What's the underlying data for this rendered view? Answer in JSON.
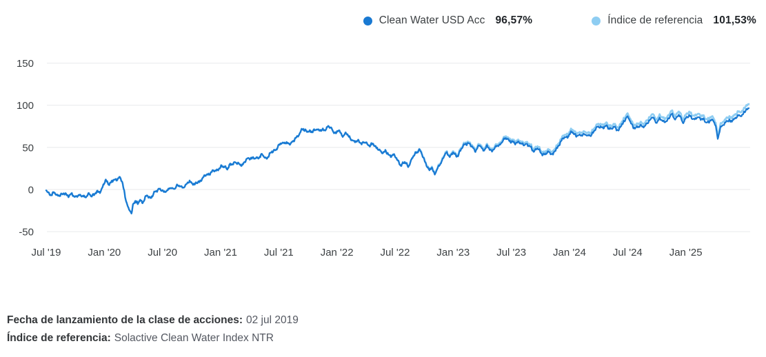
{
  "legend": {
    "series": [
      {
        "label": "Clean Water USD Acc",
        "value": "96,57%",
        "color": "#1979d2"
      },
      {
        "label": "Índice de referencia",
        "value": "101,53%",
        "color": "#8ecdf2"
      }
    ]
  },
  "footnotes": [
    {
      "label": "Fecha de lanzamiento de la clase de acciones:",
      "value": "02 jul 2019"
    },
    {
      "label": "Índice de referencia:",
      "value": "Solactive Clean Water Index NTR"
    }
  ],
  "chart_data": {
    "type": "line",
    "title": "",
    "xlabel": "",
    "ylabel": "",
    "x_unit": "months since Jul 2019",
    "x_range_months": [
      0,
      72.5
    ],
    "ylim": [
      -75,
      175
    ],
    "grid": "horizontal only",
    "legend_position": "top-right",
    "y_ticks": [
      150,
      100,
      50,
      0,
      -50
    ],
    "x_tick_months": [
      0,
      6,
      12,
      18,
      24,
      30,
      36,
      42,
      48,
      54,
      60,
      66
    ],
    "x_tick_labels": [
      "Jul '19",
      "Jan '20",
      "Jul '20",
      "Jan '21",
      "Jul '21",
      "Jan '22",
      "Jul '22",
      "Jan '23",
      "Jul '23",
      "Jan '24",
      "Jul '24",
      "Jan '25"
    ],
    "series": [
      {
        "name": "Clean Water USD Acc",
        "color": "#1979d2",
        "final_value_pct": 96.57,
        "keypoints": [
          [
            0,
            -1
          ],
          [
            0.2,
            -4
          ],
          [
            0.5,
            -5.5
          ],
          [
            0.8,
            -4.5
          ],
          [
            1.1,
            -7
          ],
          [
            1.4,
            -5.5
          ],
          [
            1.7,
            -6.5
          ],
          [
            2,
            -5
          ],
          [
            2.3,
            -7
          ],
          [
            2.6,
            -6
          ],
          [
            2.9,
            -8
          ],
          [
            3.2,
            -6.5
          ],
          [
            3.5,
            -8
          ],
          [
            3.8,
            -6.5
          ],
          [
            4.1,
            -8.5
          ],
          [
            4.4,
            -6
          ],
          [
            4.7,
            -7
          ],
          [
            5,
            -5
          ],
          [
            5.3,
            -3.5
          ],
          [
            5.6,
            -1.5
          ],
          [
            5.9,
            5
          ],
          [
            6.2,
            10.5
          ],
          [
            6.5,
            7
          ],
          [
            6.8,
            9.5
          ],
          [
            7.1,
            11
          ],
          [
            7.4,
            13.5
          ],
          [
            7.6,
            14.5
          ],
          [
            7.9,
            6
          ],
          [
            8.2,
            -10
          ],
          [
            8.5,
            -24
          ],
          [
            8.8,
            -28.5
          ],
          [
            9,
            -16
          ],
          [
            9.2,
            -13
          ],
          [
            9.45,
            -18
          ],
          [
            9.7,
            -12
          ],
          [
            9.95,
            -15
          ],
          [
            10.2,
            -10
          ],
          [
            10.5,
            -8
          ],
          [
            10.8,
            -9.5
          ],
          [
            11.1,
            -5
          ],
          [
            11.4,
            -2
          ],
          [
            11.65,
            2
          ],
          [
            11.9,
            -1
          ],
          [
            12.15,
            -4
          ],
          [
            12.5,
            0
          ],
          [
            12.8,
            1.5
          ],
          [
            13.1,
            0
          ],
          [
            13.5,
            5.5
          ],
          [
            13.9,
            2.5
          ],
          [
            14.3,
            4.5
          ],
          [
            14.7,
            8
          ],
          [
            15,
            9.5
          ],
          [
            15.3,
            5.5
          ],
          [
            15.7,
            8.5
          ],
          [
            16.1,
            13
          ],
          [
            16.6,
            17.5
          ],
          [
            17.1,
            20.5
          ],
          [
            17.6,
            23.5
          ],
          [
            18,
            26
          ],
          [
            18.4,
            28
          ],
          [
            18.7,
            24.5
          ],
          [
            19.1,
            30
          ],
          [
            19.5,
            33
          ],
          [
            19.9,
            29
          ],
          [
            20.3,
            30.5
          ],
          [
            20.7,
            35
          ],
          [
            21.1,
            38.5
          ],
          [
            21.5,
            36
          ],
          [
            21.9,
            38.5
          ],
          [
            22.3,
            41
          ],
          [
            22.6,
            36.5
          ],
          [
            23,
            41
          ],
          [
            23.4,
            45
          ],
          [
            23.8,
            49
          ],
          [
            24.2,
            54
          ],
          [
            24.6,
            56.5
          ],
          [
            25,
            53
          ],
          [
            25.4,
            57
          ],
          [
            25.8,
            60.5
          ],
          [
            26.1,
            65.5
          ],
          [
            26.4,
            73
          ],
          [
            26.7,
            68.5
          ],
          [
            27.1,
            70.5
          ],
          [
            27.5,
            67.5
          ],
          [
            27.9,
            72.5
          ],
          [
            28.3,
            69.5
          ],
          [
            28.7,
            71
          ],
          [
            29.1,
            75
          ],
          [
            29.5,
            71
          ],
          [
            29.9,
            66.5
          ],
          [
            30.2,
            70
          ],
          [
            30.6,
            64
          ],
          [
            31,
            66.5
          ],
          [
            31.4,
            61
          ],
          [
            31.8,
            55.5
          ],
          [
            32.2,
            59
          ],
          [
            32.6,
            53.5
          ],
          [
            33,
            56.5
          ],
          [
            33.4,
            51.5
          ],
          [
            33.8,
            54
          ],
          [
            34.2,
            48.5
          ],
          [
            34.6,
            43.5
          ],
          [
            35,
            46
          ],
          [
            35.4,
            39
          ],
          [
            35.8,
            42.5
          ],
          [
            36.2,
            35
          ],
          [
            36.6,
            29.5
          ],
          [
            37,
            31.5
          ],
          [
            37.35,
            28
          ],
          [
            37.7,
            35
          ],
          [
            38.1,
            43
          ],
          [
            38.45,
            47.5
          ],
          [
            38.8,
            41
          ],
          [
            39.2,
            31
          ],
          [
            39.55,
            21.5
          ],
          [
            39.8,
            26
          ],
          [
            40.1,
            19
          ],
          [
            40.45,
            25
          ],
          [
            40.8,
            34
          ],
          [
            41.2,
            43
          ],
          [
            41.6,
            40
          ],
          [
            42,
            44
          ],
          [
            42.35,
            38.5
          ],
          [
            42.7,
            46
          ],
          [
            43.1,
            52
          ],
          [
            43.5,
            56.5
          ],
          [
            43.9,
            50.5
          ],
          [
            44.3,
            47
          ],
          [
            44.7,
            52
          ],
          [
            45.1,
            47.5
          ],
          [
            45.5,
            50.5
          ],
          [
            45.9,
            46
          ],
          [
            46.3,
            49
          ],
          [
            46.7,
            52.5
          ],
          [
            47.1,
            57.5
          ],
          [
            47.55,
            61
          ],
          [
            47.9,
            57.5
          ],
          [
            48.3,
            54.5
          ],
          [
            48.7,
            57.5
          ],
          [
            49.1,
            52.5
          ],
          [
            49.5,
            55
          ],
          [
            49.9,
            50.5
          ],
          [
            50.3,
            46.5
          ],
          [
            50.7,
            48.5
          ],
          [
            51.1,
            43.5
          ],
          [
            51.5,
            41
          ],
          [
            51.9,
            45
          ],
          [
            52.3,
            41.5
          ],
          [
            52.7,
            49
          ],
          [
            53.1,
            57
          ],
          [
            53.5,
            61.5
          ],
          [
            53.9,
            64
          ],
          [
            54.3,
            68
          ],
          [
            54.7,
            64.5
          ],
          [
            55.1,
            63
          ],
          [
            55.5,
            66.5
          ],
          [
            55.9,
            62.5
          ],
          [
            56.3,
            66.5
          ],
          [
            56.7,
            71.5
          ],
          [
            57.1,
            75.5
          ],
          [
            57.5,
            73
          ],
          [
            57.9,
            75.5
          ],
          [
            58.3,
            71.5
          ],
          [
            58.7,
            73.5
          ],
          [
            59.1,
            71
          ],
          [
            59.5,
            78
          ],
          [
            59.9,
            87.5
          ],
          [
            60.25,
            80.5
          ],
          [
            60.6,
            74.5
          ],
          [
            61,
            73
          ],
          [
            61.4,
            76.5
          ],
          [
            61.8,
            74.5
          ],
          [
            62.2,
            81.5
          ],
          [
            62.55,
            87
          ],
          [
            62.9,
            78.5
          ],
          [
            63.3,
            85.5
          ],
          [
            63.7,
            79
          ],
          [
            64.1,
            83
          ],
          [
            64.5,
            88.5
          ],
          [
            64.9,
            84.5
          ],
          [
            65.3,
            88
          ],
          [
            65.7,
            80.5
          ],
          [
            66.1,
            85.5
          ],
          [
            66.5,
            87.5
          ],
          [
            66.9,
            82.5
          ],
          [
            67.3,
            86
          ],
          [
            67.7,
            84
          ],
          [
            68.1,
            79
          ],
          [
            68.5,
            82.5
          ],
          [
            68.9,
            80.5
          ],
          [
            69.1,
            75
          ],
          [
            69.3,
            61
          ],
          [
            69.55,
            71.5
          ],
          [
            69.8,
            75.5
          ],
          [
            70.2,
            82
          ],
          [
            70.6,
            80
          ],
          [
            71,
            84.5
          ],
          [
            71.4,
            86.5
          ],
          [
            71.8,
            89
          ],
          [
            72.1,
            92.5
          ],
          [
            72.35,
            94.5
          ],
          [
            72.5,
            96.57
          ]
        ]
      },
      {
        "name": "Índice de referencia",
        "color": "#8ecdf2",
        "final_value_pct": 101.53,
        "derived": "benchmark = fund series + spread (tracks fund exactly until late 2022, then runs above it)",
        "spread_keypoints": [
          [
            0,
            0
          ],
          [
            36,
            0
          ],
          [
            40,
            0.9
          ],
          [
            44,
            1.6
          ],
          [
            48,
            2.1
          ],
          [
            54,
            3.0
          ],
          [
            60,
            3.3
          ],
          [
            63,
            3.8
          ],
          [
            66,
            4.2
          ],
          [
            69.3,
            3.6
          ],
          [
            71,
            4.3
          ],
          [
            72.5,
            4.96
          ]
        ]
      }
    ]
  }
}
